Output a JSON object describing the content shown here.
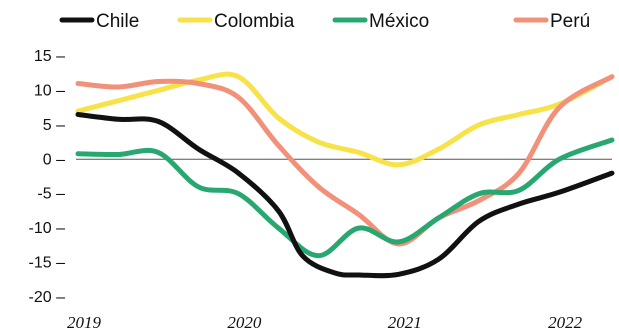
{
  "chart_data": {
    "type": "line",
    "legend": {
      "placement": "top"
    },
    "y_axis": {
      "ylim": [
        -20,
        15
      ],
      "ticks": [
        15,
        10,
        5,
        0,
        -5,
        -10,
        -15,
        -20
      ],
      "tick_labels": [
        "15 –",
        "10 –",
        "5 –",
        "0 –",
        "-5 –",
        "-10 –",
        "-15 –",
        "-20 –"
      ]
    },
    "x_axis": {
      "xlim": [
        2019,
        2022.33
      ],
      "ticks": [
        2019,
        2020,
        2021,
        2022
      ],
      "tick_labels": [
        "2019",
        "2020",
        "2021",
        "2022"
      ]
    },
    "zero_line": true,
    "grid": false,
    "series": [
      {
        "name": "Chile",
        "color": "#111111",
        "x": [
          2019.0,
          2019.25,
          2019.5,
          2019.75,
          2020.0,
          2020.25,
          2020.4,
          2020.6,
          2020.75,
          2021.0,
          2021.25,
          2021.5,
          2021.75,
          2022.0,
          2022.33
        ],
        "y": [
          6.5,
          5.8,
          5.5,
          1.5,
          -2.0,
          -7.5,
          -14.0,
          -16.5,
          -16.8,
          -16.7,
          -14.5,
          -9.0,
          -6.5,
          -4.8,
          -2.0
        ]
      },
      {
        "name": "Colombia",
        "color": "#f7e24a",
        "x": [
          2019.0,
          2019.25,
          2019.5,
          2019.75,
          2020.0,
          2020.25,
          2020.5,
          2020.75,
          2021.0,
          2021.25,
          2021.5,
          2021.75,
          2022.0,
          2022.33
        ],
        "y": [
          7.0,
          8.5,
          10.0,
          11.5,
          12.0,
          6.0,
          2.5,
          1.0,
          -0.8,
          1.5,
          5.0,
          6.5,
          8.0,
          12.0
        ]
      },
      {
        "name": "México",
        "color": "#28a870",
        "x": [
          2019.0,
          2019.25,
          2019.5,
          2019.75,
          2020.0,
          2020.25,
          2020.5,
          2020.75,
          2021.0,
          2021.25,
          2021.5,
          2021.75,
          2022.0,
          2022.33
        ],
        "y": [
          0.8,
          0.7,
          1.0,
          -4.0,
          -5.0,
          -10.0,
          -14.0,
          -10.0,
          -12.0,
          -8.5,
          -5.0,
          -4.5,
          0.0,
          2.8
        ]
      },
      {
        "name": "Perú",
        "color": "#f2917a",
        "x": [
          2019.0,
          2019.25,
          2019.5,
          2019.75,
          2020.0,
          2020.25,
          2020.5,
          2020.75,
          2021.0,
          2021.25,
          2021.5,
          2021.75,
          2022.0,
          2022.33
        ],
        "y": [
          11.0,
          10.5,
          11.3,
          11.0,
          9.0,
          2.0,
          -4.0,
          -8.0,
          -12.3,
          -8.5,
          -6.0,
          -2.0,
          7.5,
          12.0
        ]
      }
    ]
  }
}
